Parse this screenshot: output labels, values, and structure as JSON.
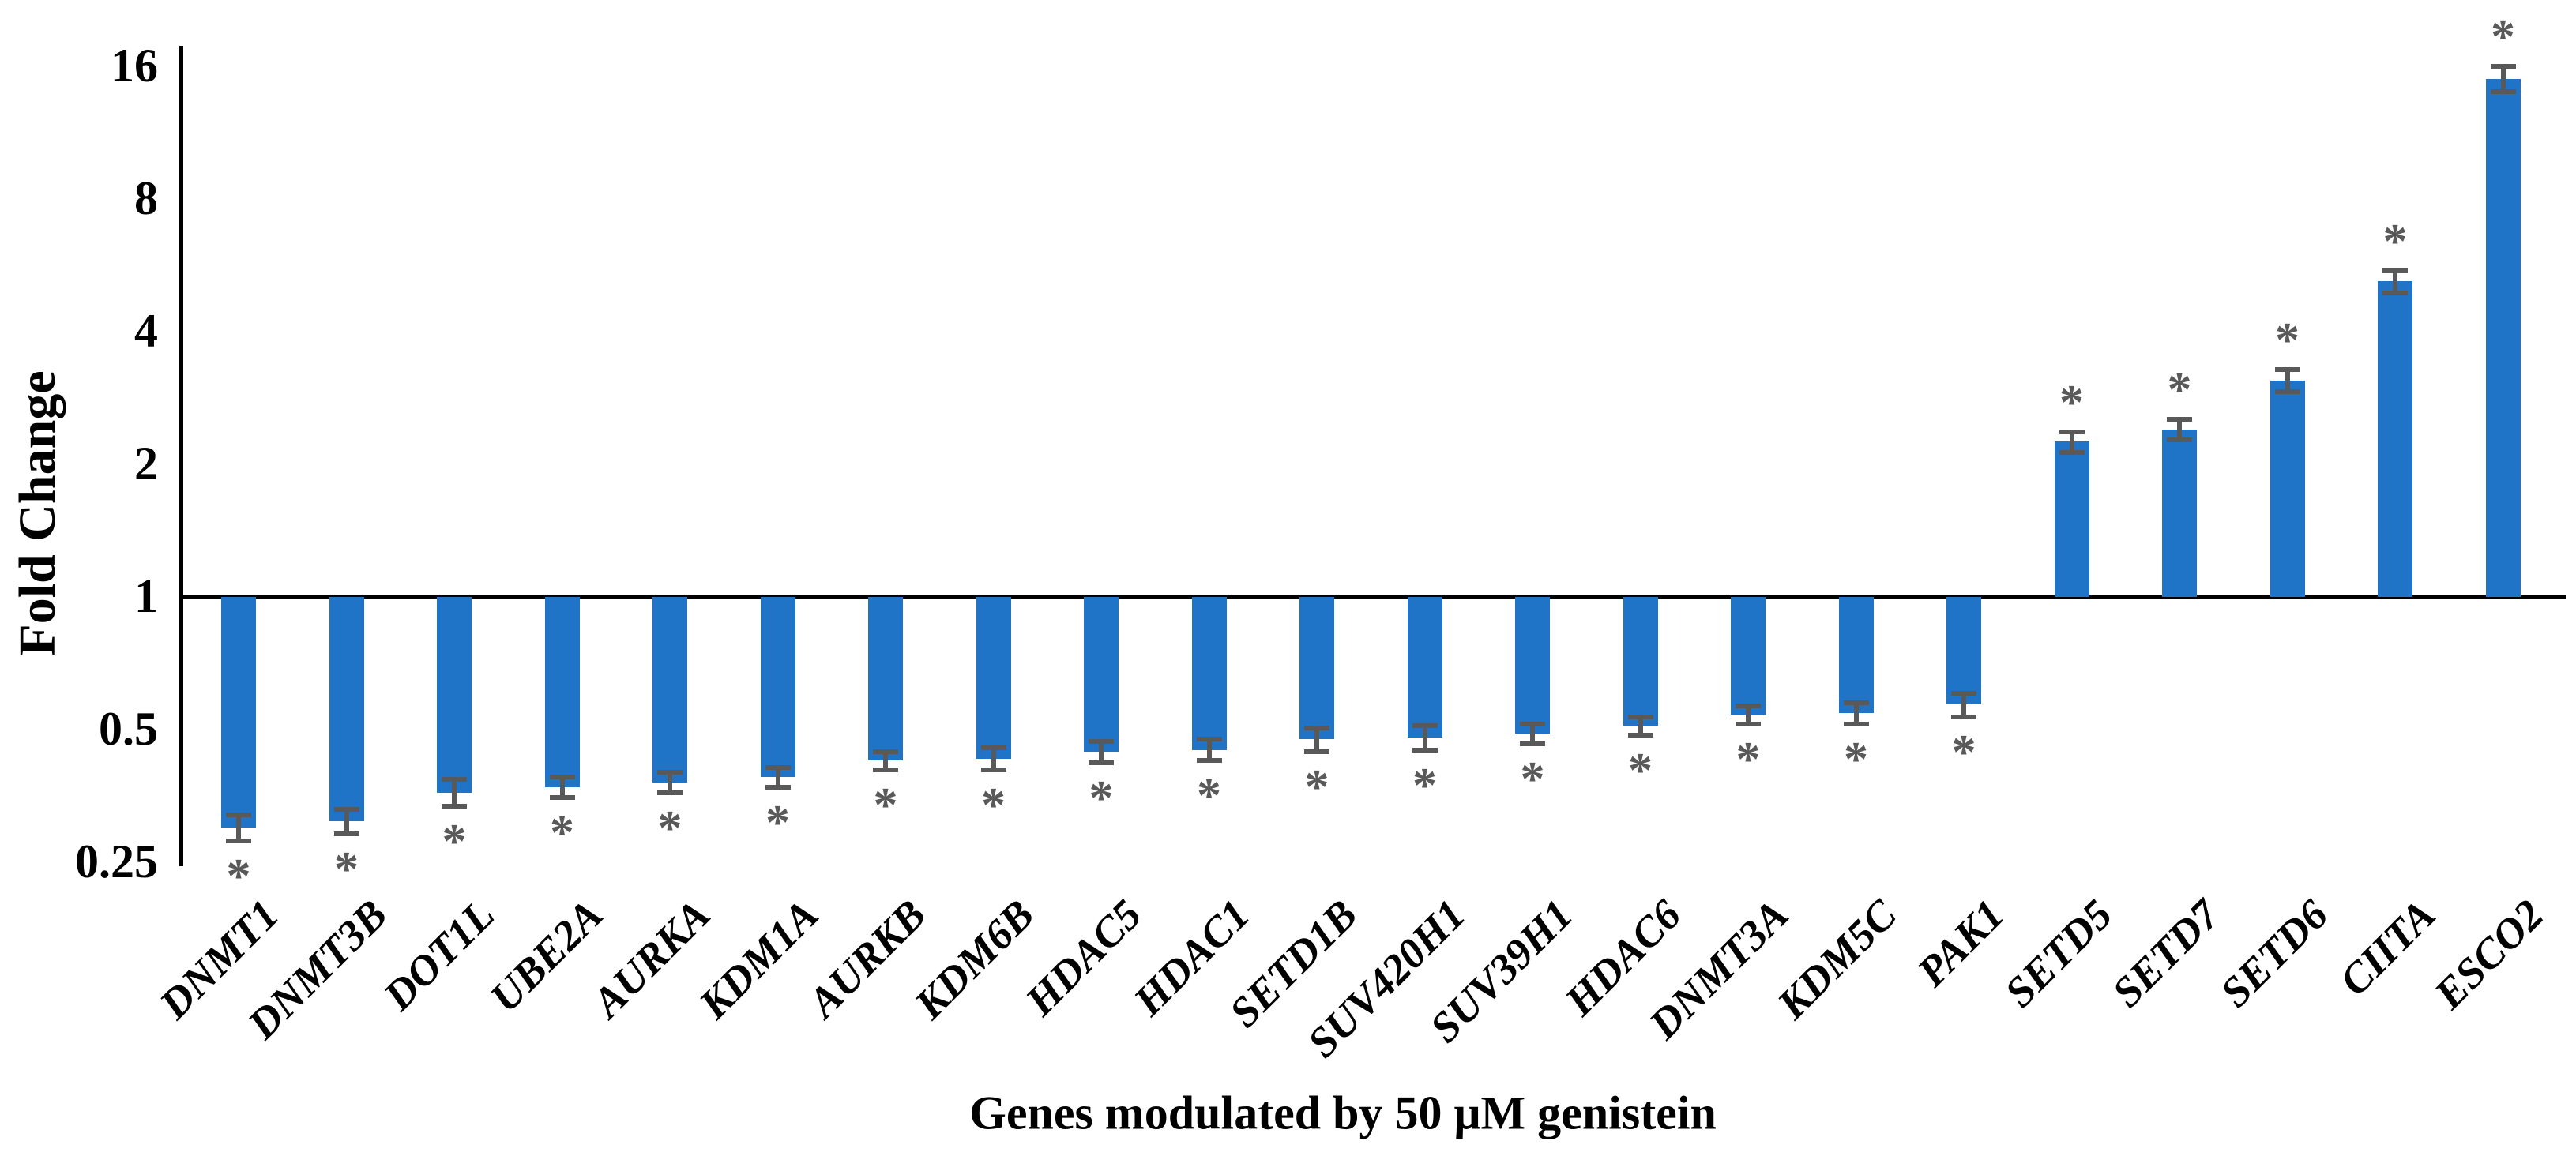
{
  "chart_data": {
    "type": "bar",
    "title": "",
    "xlabel": "Genes modulated by 50 μM genistein",
    "ylabel": "Fold Change",
    "scale": "log2",
    "baseline": 1,
    "ylim": [
      0.25,
      16
    ],
    "yticks": [
      16,
      8,
      4,
      2,
      1,
      0.5,
      0.25
    ],
    "ytick_labels": [
      "16",
      "8",
      "4",
      "2",
      "1",
      "0.5",
      "0.25"
    ],
    "grid": false,
    "legend": "none",
    "categories": [
      "DNMT1",
      "DNMT3B",
      "DOT1L",
      "UBE2A",
      "AURKA",
      "KDM1A",
      "AURKB",
      "KDM6B",
      "HDAC5",
      "HDAC1",
      "SETD1B",
      "SUV420H1",
      "SUV39H1",
      "HDAC6",
      "DNMT3A",
      "KDM5C",
      "PAK1",
      "SETD5",
      "SETD7",
      "SETD6",
      "CIITA",
      "ESCO2"
    ],
    "values": [
      0.3,
      0.31,
      0.36,
      0.37,
      0.38,
      0.39,
      0.425,
      0.43,
      0.445,
      0.45,
      0.475,
      0.48,
      0.49,
      0.51,
      0.54,
      0.545,
      0.57,
      2.25,
      2.4,
      3.1,
      5.2,
      15.0
    ],
    "errors": [
      0.02,
      0.02,
      0.025,
      0.02,
      0.02,
      0.02,
      0.02,
      0.025,
      0.025,
      0.025,
      0.03,
      0.03,
      0.025,
      0.025,
      0.025,
      0.03,
      0.035,
      0.12,
      0.13,
      0.18,
      0.3,
      1.0
    ],
    "significance_marker": "*",
    "significance": [
      "*",
      "*",
      "*",
      "*",
      "*",
      "*",
      "*",
      "*",
      "*",
      "*",
      "*",
      "*",
      "*",
      "*",
      "*",
      "*",
      "*",
      "*",
      "*",
      "*",
      "*",
      "*"
    ],
    "bar_color": "#1F74C8",
    "error_color": "#595959",
    "axis_color": "#000000"
  }
}
